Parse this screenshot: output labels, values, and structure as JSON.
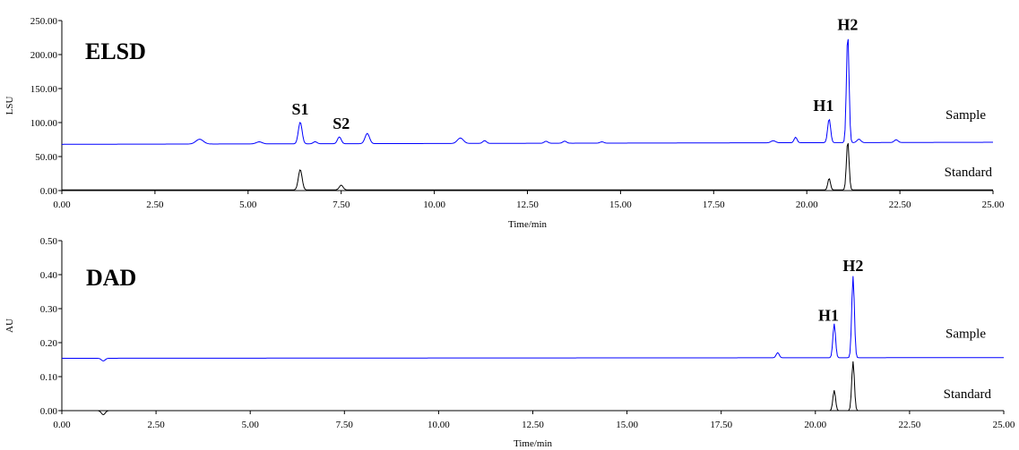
{
  "chart_data": [
    {
      "type": "line",
      "title": "ELSD",
      "xlabel": "Time/min",
      "ylabel": "LSU",
      "xlim": [
        0,
        25
      ],
      "ylim": [
        0,
        250
      ],
      "x_ticks": [
        "0.00",
        "2.50",
        "5.00",
        "7.50",
        "10.00",
        "12.50",
        "15.00",
        "17.50",
        "20.00",
        "22.50",
        "25.00"
      ],
      "y_ticks": [
        "0.00",
        "50.00",
        "100.00",
        "150.00",
        "200.00",
        "250.00"
      ],
      "grid": false,
      "series": [
        {
          "name": "Sample",
          "color": "#0000ff",
          "baseline": 68,
          "baseline_end": 71,
          "peaks": [
            [
              3.7,
              7,
              0.1
            ],
            [
              5.3,
              3,
              0.08
            ],
            [
              6.4,
              32,
              0.05
            ],
            [
              6.8,
              3,
              0.05
            ],
            [
              7.45,
              10,
              0.05
            ],
            [
              8.2,
              15,
              0.06
            ],
            [
              10.7,
              8,
              0.08
            ],
            [
              11.35,
              4,
              0.05
            ],
            [
              13.0,
              3,
              0.05
            ],
            [
              13.5,
              3,
              0.05
            ],
            [
              14.5,
              2,
              0.05
            ],
            [
              19.1,
              3,
              0.06
            ],
            [
              19.7,
              8,
              0.04
            ],
            [
              20.6,
              35,
              0.04
            ],
            [
              21.1,
              160,
              0.035
            ],
            [
              21.4,
              5,
              0.05
            ],
            [
              22.4,
              4,
              0.05
            ]
          ]
        },
        {
          "name": "Standard",
          "color": "#000000",
          "baseline": 1,
          "baseline_end": 1,
          "peaks": [
            [
              6.4,
              30,
              0.05
            ],
            [
              7.5,
              7,
              0.05
            ],
            [
              20.6,
              17,
              0.035
            ],
            [
              21.1,
              72,
              0.035
            ]
          ]
        }
      ],
      "peak_labels": [
        {
          "text": "S1",
          "x": 6.4,
          "y": 112
        },
        {
          "text": "S2",
          "x": 7.5,
          "y": 91
        },
        {
          "text": "H1",
          "x": 20.45,
          "y": 117
        },
        {
          "text": "H2",
          "x": 21.1,
          "y": 236
        }
      ]
    },
    {
      "type": "line",
      "title": "DAD",
      "xlabel": "Time/min",
      "ylabel": "AU",
      "xlim": [
        0,
        25
      ],
      "ylim": [
        0,
        0.5
      ],
      "x_ticks": [
        "0.00",
        "2.50",
        "5.00",
        "7.50",
        "10.00",
        "12.50",
        "15.00",
        "17.50",
        "20.00",
        "22.50",
        "25.00"
      ],
      "y_ticks": [
        "0.00",
        "0.10",
        "0.20",
        "0.30",
        "0.40",
        "0.50"
      ],
      "grid": false,
      "series": [
        {
          "name": "Sample",
          "color": "#0000ff",
          "baseline": 0.154,
          "baseline_end": 0.156,
          "peaks": [
            [
              1.1,
              -0.008,
              0.05
            ],
            [
              19.0,
              0.015,
              0.04
            ],
            [
              20.5,
              0.1,
              0.035
            ],
            [
              21.0,
              0.24,
              0.035
            ]
          ]
        },
        {
          "name": "Standard",
          "color": "#000000",
          "baseline": 0.0,
          "baseline_end": 0.0,
          "peaks": [
            [
              1.1,
              -0.012,
              0.05
            ],
            [
              20.5,
              0.06,
              0.035
            ],
            [
              21.0,
              0.145,
              0.035
            ]
          ]
        }
      ],
      "peak_labels": [
        {
          "text": "H1",
          "x": 20.35,
          "y": 0.265
        },
        {
          "text": "H2",
          "x": 21.0,
          "y": 0.41
        }
      ]
    }
  ]
}
